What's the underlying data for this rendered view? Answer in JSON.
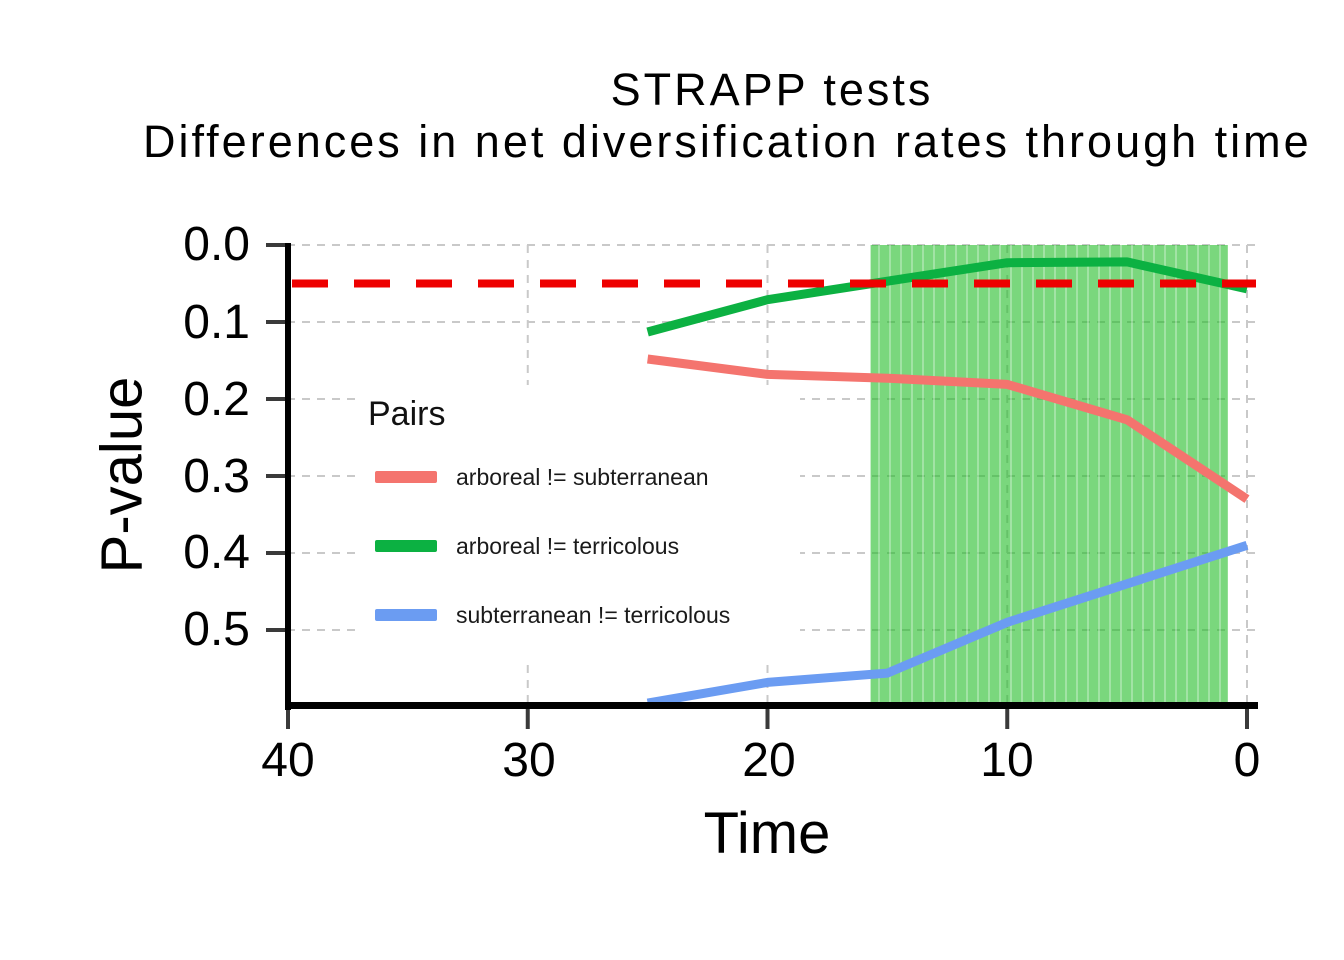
{
  "title": "STRAPP tests",
  "subtitle": "Differences in net diversification rates through time",
  "axes": {
    "x": {
      "label": "Time",
      "tick_labels": [
        "40",
        "30",
        "20",
        "10",
        "0"
      ],
      "tick_values": [
        40,
        30,
        20,
        10,
        0
      ]
    },
    "y": {
      "label": "P-value",
      "tick_labels": [
        "0.0",
        "0.1",
        "0.2",
        "0.3",
        "0.4",
        "0.5"
      ],
      "tick_values": [
        0,
        0.1,
        0.2,
        0.3,
        0.4,
        0.5
      ]
    }
  },
  "legend": {
    "title": "Pairs",
    "items": [
      {
        "label": "arboreal != subterranean"
      },
      {
        "label": "arboreal != terricolous"
      },
      {
        "label": "subterranean != terricolous"
      }
    ]
  },
  "chart_data": {
    "type": "line",
    "title": "STRAPP tests",
    "subtitle": "Differences in net diversification rates through time",
    "xlabel": "Time",
    "ylabel": "P-value",
    "xlim": [
      40,
      0
    ],
    "ylim": [
      0,
      0.6
    ],
    "x_axis_reversed": true,
    "y_axis_inverted": true,
    "grid": "dashed",
    "legend_position": "inside-left",
    "x": [
      25,
      20,
      15,
      10,
      5,
      0
    ],
    "series": [
      {
        "name": "arboreal != subterranean",
        "color": "#F4746E",
        "values": [
          0.148,
          0.168,
          0.173,
          0.181,
          0.227,
          0.33
        ]
      },
      {
        "name": "arboreal != terricolous",
        "color": "#0CB142",
        "values": [
          0.113,
          0.071,
          0.047,
          0.023,
          0.022,
          0.057
        ]
      },
      {
        "name": "subterranean != terricolous",
        "color": "#6B9CF2",
        "values": [
          0.595,
          0.568,
          0.556,
          0.49,
          0.44,
          0.39
        ]
      }
    ],
    "threshold_line": {
      "value": 0.05,
      "color": "#EE0000",
      "style": "dashed"
    },
    "shaded_region": {
      "x_from": 15.7,
      "x_to": 0.8,
      "color": "#28BE2D",
      "striped": true
    }
  },
  "colors": {
    "background": "#FFFFFF",
    "gridline": "#C9C9C9",
    "axis_spine": "#000000",
    "tick_mark": "#3A3A3A",
    "text": "#000000"
  }
}
